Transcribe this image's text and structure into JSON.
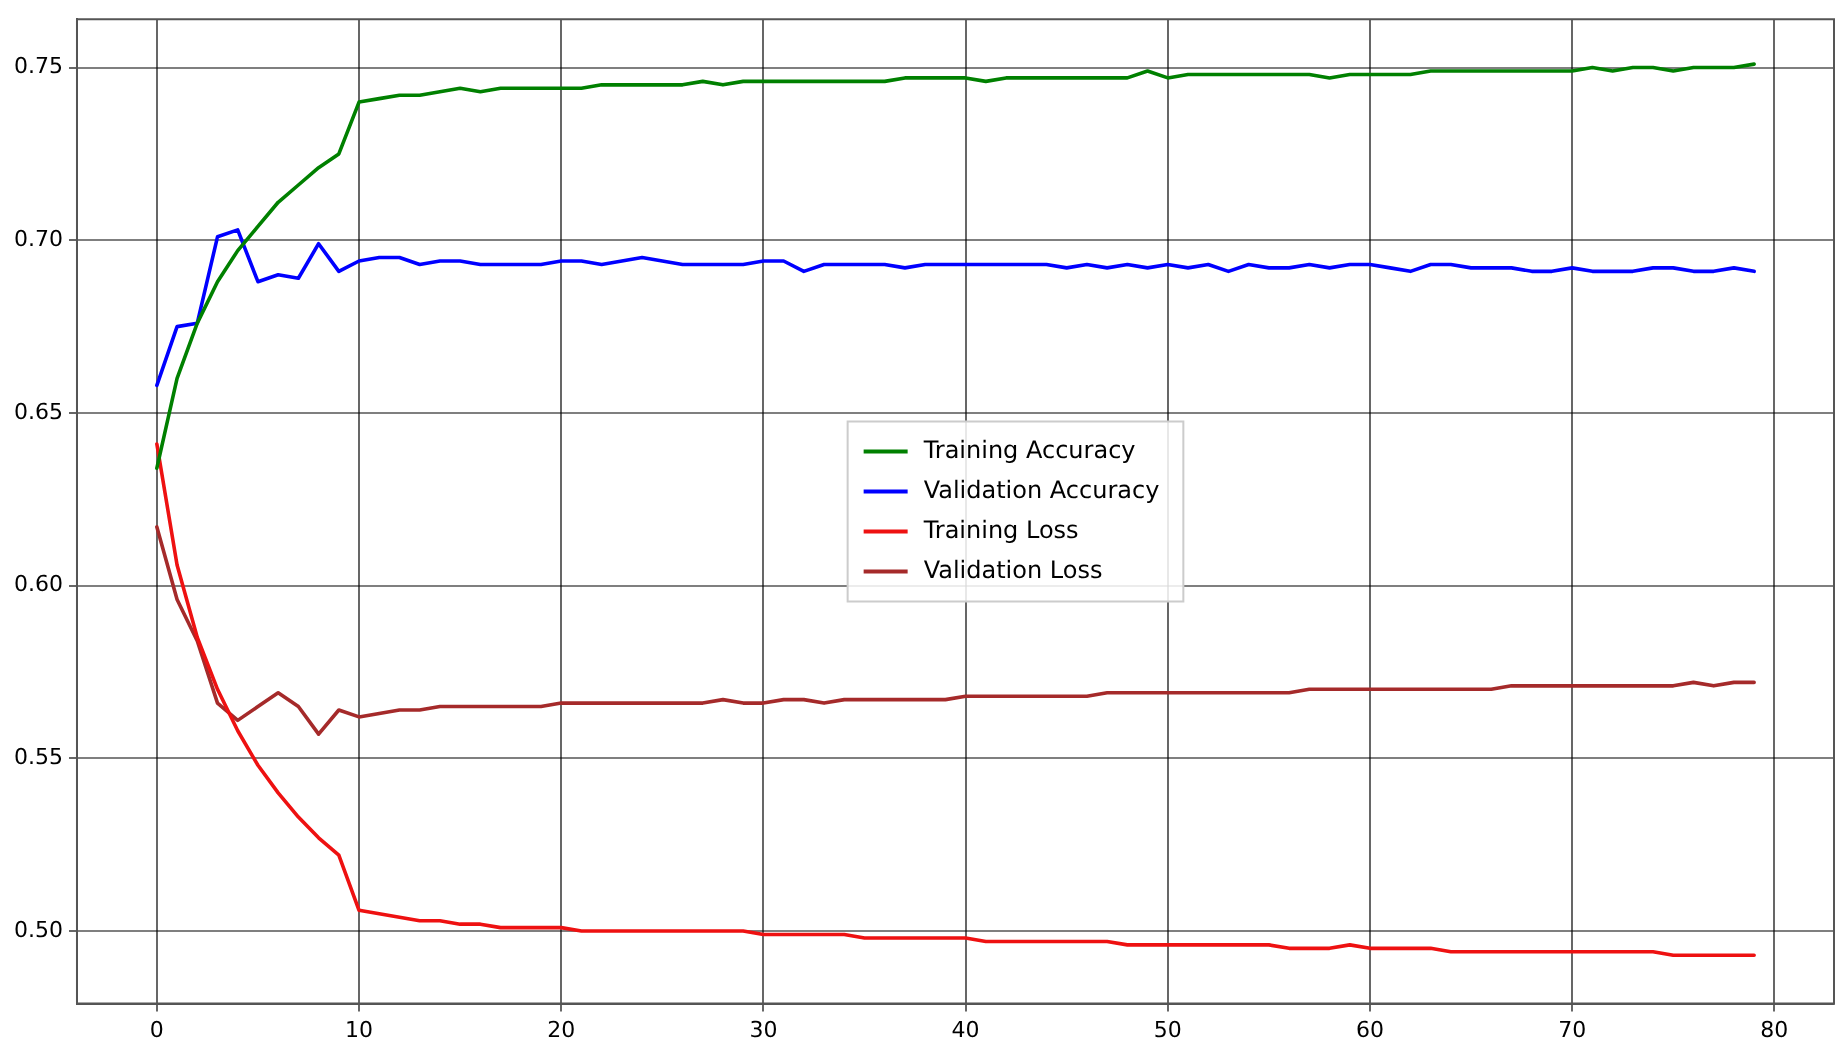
{
  "chart_data": {
    "type": "line",
    "x": [
      0,
      1,
      2,
      3,
      4,
      5,
      6,
      7,
      8,
      9,
      10,
      11,
      12,
      13,
      14,
      15,
      16,
      17,
      18,
      19,
      20,
      21,
      22,
      23,
      24,
      25,
      26,
      27,
      28,
      29,
      30,
      31,
      32,
      33,
      34,
      35,
      36,
      37,
      38,
      39,
      40,
      41,
      42,
      43,
      44,
      45,
      46,
      47,
      48,
      49,
      50,
      51,
      52,
      53,
      54,
      55,
      56,
      57,
      58,
      59,
      60,
      61,
      62,
      63,
      64,
      65,
      66,
      67,
      68,
      69,
      70,
      71,
      72,
      73,
      74,
      75,
      76,
      77,
      78,
      79
    ],
    "series": [
      {
        "name": "Training Accuracy",
        "color": "#008000",
        "values": [
          0.634,
          0.66,
          0.676,
          0.688,
          0.697,
          0.704,
          0.711,
          0.716,
          0.721,
          0.725,
          0.74,
          0.741,
          0.742,
          0.742,
          0.743,
          0.744,
          0.743,
          0.744,
          0.744,
          0.744,
          0.744,
          0.744,
          0.745,
          0.745,
          0.745,
          0.745,
          0.745,
          0.746,
          0.745,
          0.746,
          0.746,
          0.746,
          0.746,
          0.746,
          0.746,
          0.746,
          0.746,
          0.747,
          0.747,
          0.747,
          0.747,
          0.746,
          0.747,
          0.747,
          0.747,
          0.747,
          0.747,
          0.747,
          0.747,
          0.749,
          0.747,
          0.748,
          0.748,
          0.748,
          0.748,
          0.748,
          0.748,
          0.748,
          0.747,
          0.748,
          0.748,
          0.748,
          0.748,
          0.749,
          0.749,
          0.749,
          0.749,
          0.749,
          0.749,
          0.749,
          0.749,
          0.75,
          0.749,
          0.75,
          0.75,
          0.749,
          0.75,
          0.75,
          0.75,
          0.751
        ]
      },
      {
        "name": "Validation Accuracy",
        "color": "#0000ff",
        "values": [
          0.658,
          0.675,
          0.676,
          0.701,
          0.703,
          0.688,
          0.69,
          0.689,
          0.699,
          0.691,
          0.694,
          0.695,
          0.695,
          0.693,
          0.694,
          0.694,
          0.693,
          0.693,
          0.693,
          0.693,
          0.694,
          0.694,
          0.693,
          0.694,
          0.695,
          0.694,
          0.693,
          0.693,
          0.693,
          0.693,
          0.694,
          0.694,
          0.691,
          0.693,
          0.693,
          0.693,
          0.693,
          0.692,
          0.693,
          0.693,
          0.693,
          0.693,
          0.693,
          0.693,
          0.693,
          0.692,
          0.693,
          0.692,
          0.693,
          0.692,
          0.693,
          0.692,
          0.693,
          0.691,
          0.693,
          0.692,
          0.692,
          0.693,
          0.692,
          0.693,
          0.693,
          0.692,
          0.691,
          0.693,
          0.693,
          0.692,
          0.692,
          0.692,
          0.691,
          0.691,
          0.692,
          0.691,
          0.691,
          0.691,
          0.692,
          0.692,
          0.691,
          0.691,
          0.692,
          0.691
        ]
      },
      {
        "name": "Training Loss",
        "color": "#ee1111",
        "values": [
          0.641,
          0.606,
          0.585,
          0.57,
          0.558,
          0.548,
          0.54,
          0.533,
          0.527,
          0.522,
          0.506,
          0.505,
          0.504,
          0.503,
          0.503,
          0.502,
          0.502,
          0.501,
          0.501,
          0.501,
          0.501,
          0.5,
          0.5,
          0.5,
          0.5,
          0.5,
          0.5,
          0.5,
          0.5,
          0.5,
          0.499,
          0.499,
          0.499,
          0.499,
          0.499,
          0.498,
          0.498,
          0.498,
          0.498,
          0.498,
          0.498,
          0.497,
          0.497,
          0.497,
          0.497,
          0.497,
          0.497,
          0.497,
          0.496,
          0.496,
          0.496,
          0.496,
          0.496,
          0.496,
          0.496,
          0.496,
          0.495,
          0.495,
          0.495,
          0.496,
          0.495,
          0.495,
          0.495,
          0.495,
          0.494,
          0.494,
          0.494,
          0.494,
          0.494,
          0.494,
          0.494,
          0.494,
          0.494,
          0.494,
          0.494,
          0.493,
          0.493,
          0.493,
          0.493,
          0.493
        ]
      },
      {
        "name": "Validation Loss",
        "color": "#a52a2a",
        "values": [
          0.617,
          0.596,
          0.584,
          0.566,
          0.561,
          0.565,
          0.569,
          0.565,
          0.557,
          0.564,
          0.562,
          0.563,
          0.564,
          0.564,
          0.565,
          0.565,
          0.565,
          0.565,
          0.565,
          0.565,
          0.566,
          0.566,
          0.566,
          0.566,
          0.566,
          0.566,
          0.566,
          0.566,
          0.567,
          0.566,
          0.566,
          0.567,
          0.567,
          0.566,
          0.567,
          0.567,
          0.567,
          0.567,
          0.567,
          0.567,
          0.568,
          0.568,
          0.568,
          0.568,
          0.568,
          0.568,
          0.568,
          0.569,
          0.569,
          0.569,
          0.569,
          0.569,
          0.569,
          0.569,
          0.569,
          0.569,
          0.569,
          0.57,
          0.57,
          0.57,
          0.57,
          0.57,
          0.57,
          0.57,
          0.57,
          0.57,
          0.57,
          0.571,
          0.571,
          0.571,
          0.571,
          0.571,
          0.571,
          0.571,
          0.571,
          0.571,
          0.572,
          0.571,
          0.572,
          0.572
        ]
      }
    ],
    "xlim": [
      -3.95,
      82.95
    ],
    "xticks": [
      0,
      10,
      20,
      30,
      40,
      50,
      60,
      70,
      80
    ],
    "ylim": [
      0.479,
      0.764
    ],
    "yticks": [
      {
        "value": 0.5,
        "label": "0.50"
      },
      {
        "value": 0.55,
        "label": "0.55"
      },
      {
        "value": 0.6,
        "label": "0.60"
      },
      {
        "value": 0.65,
        "label": "0.65"
      },
      {
        "value": 0.7,
        "label": "0.70"
      },
      {
        "value": 0.75,
        "label": "0.75"
      }
    ],
    "grid": true,
    "legend": "center",
    "line_style": "solid",
    "marker": "none"
  }
}
